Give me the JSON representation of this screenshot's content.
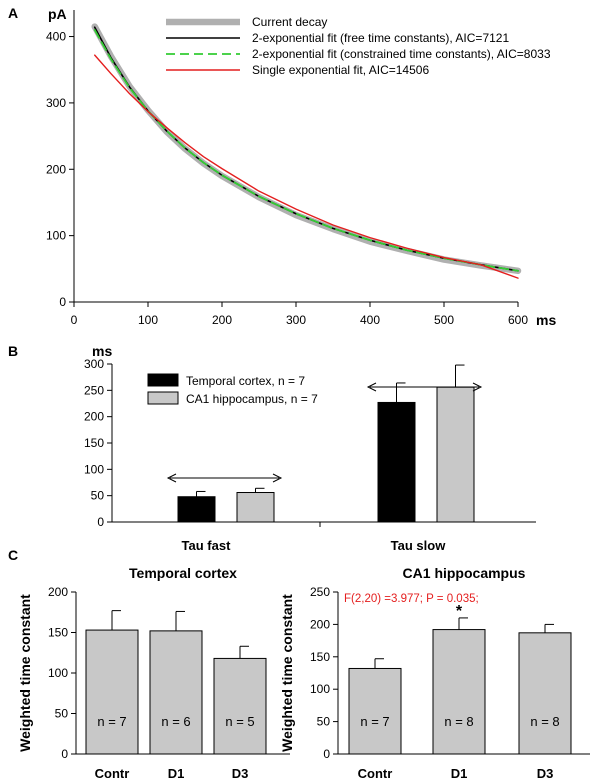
{
  "chart_data": [
    {
      "panel": "A",
      "type": "line",
      "ylabel": "pA",
      "xlabel": "ms",
      "xlim": [
        0,
        600
      ],
      "ylim": [
        0,
        440
      ],
      "xticks": [
        0,
        100,
        200,
        300,
        400,
        500,
        600
      ],
      "yticks": [
        0,
        100,
        200,
        300,
        400
      ],
      "legend_position": "top-right",
      "series": [
        {
          "name": "Current decay",
          "color": "#b0b0b0",
          "style": "thick",
          "x": [
            28,
            50,
            75,
            100,
            125,
            150,
            175,
            200,
            250,
            300,
            350,
            400,
            450,
            500,
            550,
            600
          ],
          "y": [
            415,
            370,
            325,
            289,
            257,
            231,
            209,
            190,
            158,
            131,
            110,
            91,
            77,
            64,
            55,
            47
          ]
        },
        {
          "name": "2-exponential fit (free time constants), AIC=7121",
          "color": "#000000",
          "style": "solid",
          "x": [
            28,
            50,
            75,
            100,
            125,
            150,
            175,
            200,
            250,
            300,
            350,
            400,
            450,
            500,
            550,
            600
          ],
          "y": [
            414,
            368,
            324,
            288,
            258,
            232,
            210,
            191,
            159,
            133,
            111,
            93,
            78,
            66,
            56,
            47
          ]
        },
        {
          "name": "2-exponential fit (constrained time constants), AIC=8033",
          "color": "#33cc33",
          "style": "dashed",
          "x": [
            28,
            50,
            75,
            100,
            125,
            150,
            175,
            200,
            250,
            300,
            350,
            400,
            450,
            500,
            550,
            600
          ],
          "y": [
            410,
            366,
            323,
            288,
            258,
            232,
            210,
            191,
            159,
            133,
            111,
            93,
            78,
            66,
            56,
            47
          ]
        },
        {
          "name": "Single exponential fit, AIC=14506",
          "color": "#e41e1e",
          "style": "solid",
          "x": [
            28,
            50,
            75,
            100,
            125,
            150,
            175,
            200,
            250,
            300,
            350,
            400,
            450,
            500,
            550,
            600
          ],
          "y": [
            372,
            344,
            314,
            287,
            263,
            240,
            219,
            201,
            167,
            140,
            116,
            97,
            81,
            67,
            56,
            36
          ]
        }
      ]
    },
    {
      "panel": "B",
      "type": "bar",
      "ylabel": "ms",
      "categories": [
        "Tau fast",
        "Tau slow"
      ],
      "ylim": [
        0,
        300
      ],
      "yticks": [
        0,
        50,
        100,
        150,
        200,
        250,
        300
      ],
      "legend_position": "top-left",
      "series": [
        {
          "name": "Temporal cortex, n = 7",
          "color": "#000000",
          "values": [
            48,
            227
          ],
          "errors": [
            10,
            37
          ]
        },
        {
          "name": "CA1 hippocampus, n = 7",
          "color": "#c8c8c8",
          "values": [
            56,
            256
          ],
          "errors": [
            8,
            42
          ]
        }
      ]
    },
    {
      "panel": "C",
      "type": "bar",
      "title": "Temporal cortex",
      "ylabel": "Weighted time constant",
      "categories": [
        "Contr",
        "D1",
        "D3"
      ],
      "ylim": [
        0,
        200
      ],
      "yticks": [
        0,
        50,
        100,
        150,
        200
      ],
      "color": "#c8c8c8",
      "values": [
        153,
        152,
        118
      ],
      "errors": [
        24,
        24,
        15
      ],
      "bar_labels": [
        "n = 7",
        "n = 6",
        "n = 5"
      ]
    },
    {
      "panel": "C",
      "type": "bar",
      "title": "CA1 hippocampus",
      "ylabel": "Weighted time constant",
      "categories": [
        "Contr",
        "D1",
        "D3"
      ],
      "ylim": [
        0,
        250
      ],
      "yticks": [
        0,
        50,
        100,
        150,
        200,
        250
      ],
      "color": "#c8c8c8",
      "values": [
        132,
        192,
        187
      ],
      "errors": [
        15,
        18,
        13
      ],
      "bar_labels": [
        "n = 7",
        "n = 8",
        "n = 8"
      ],
      "annotation": "F(2,20) =3.977; P = 0.035;",
      "annotation_color": "#e41e1e",
      "significance": [
        "",
        "*",
        ""
      ]
    }
  ],
  "labels": {
    "panel_a": "A",
    "panel_b": "B",
    "panel_c": "C"
  }
}
